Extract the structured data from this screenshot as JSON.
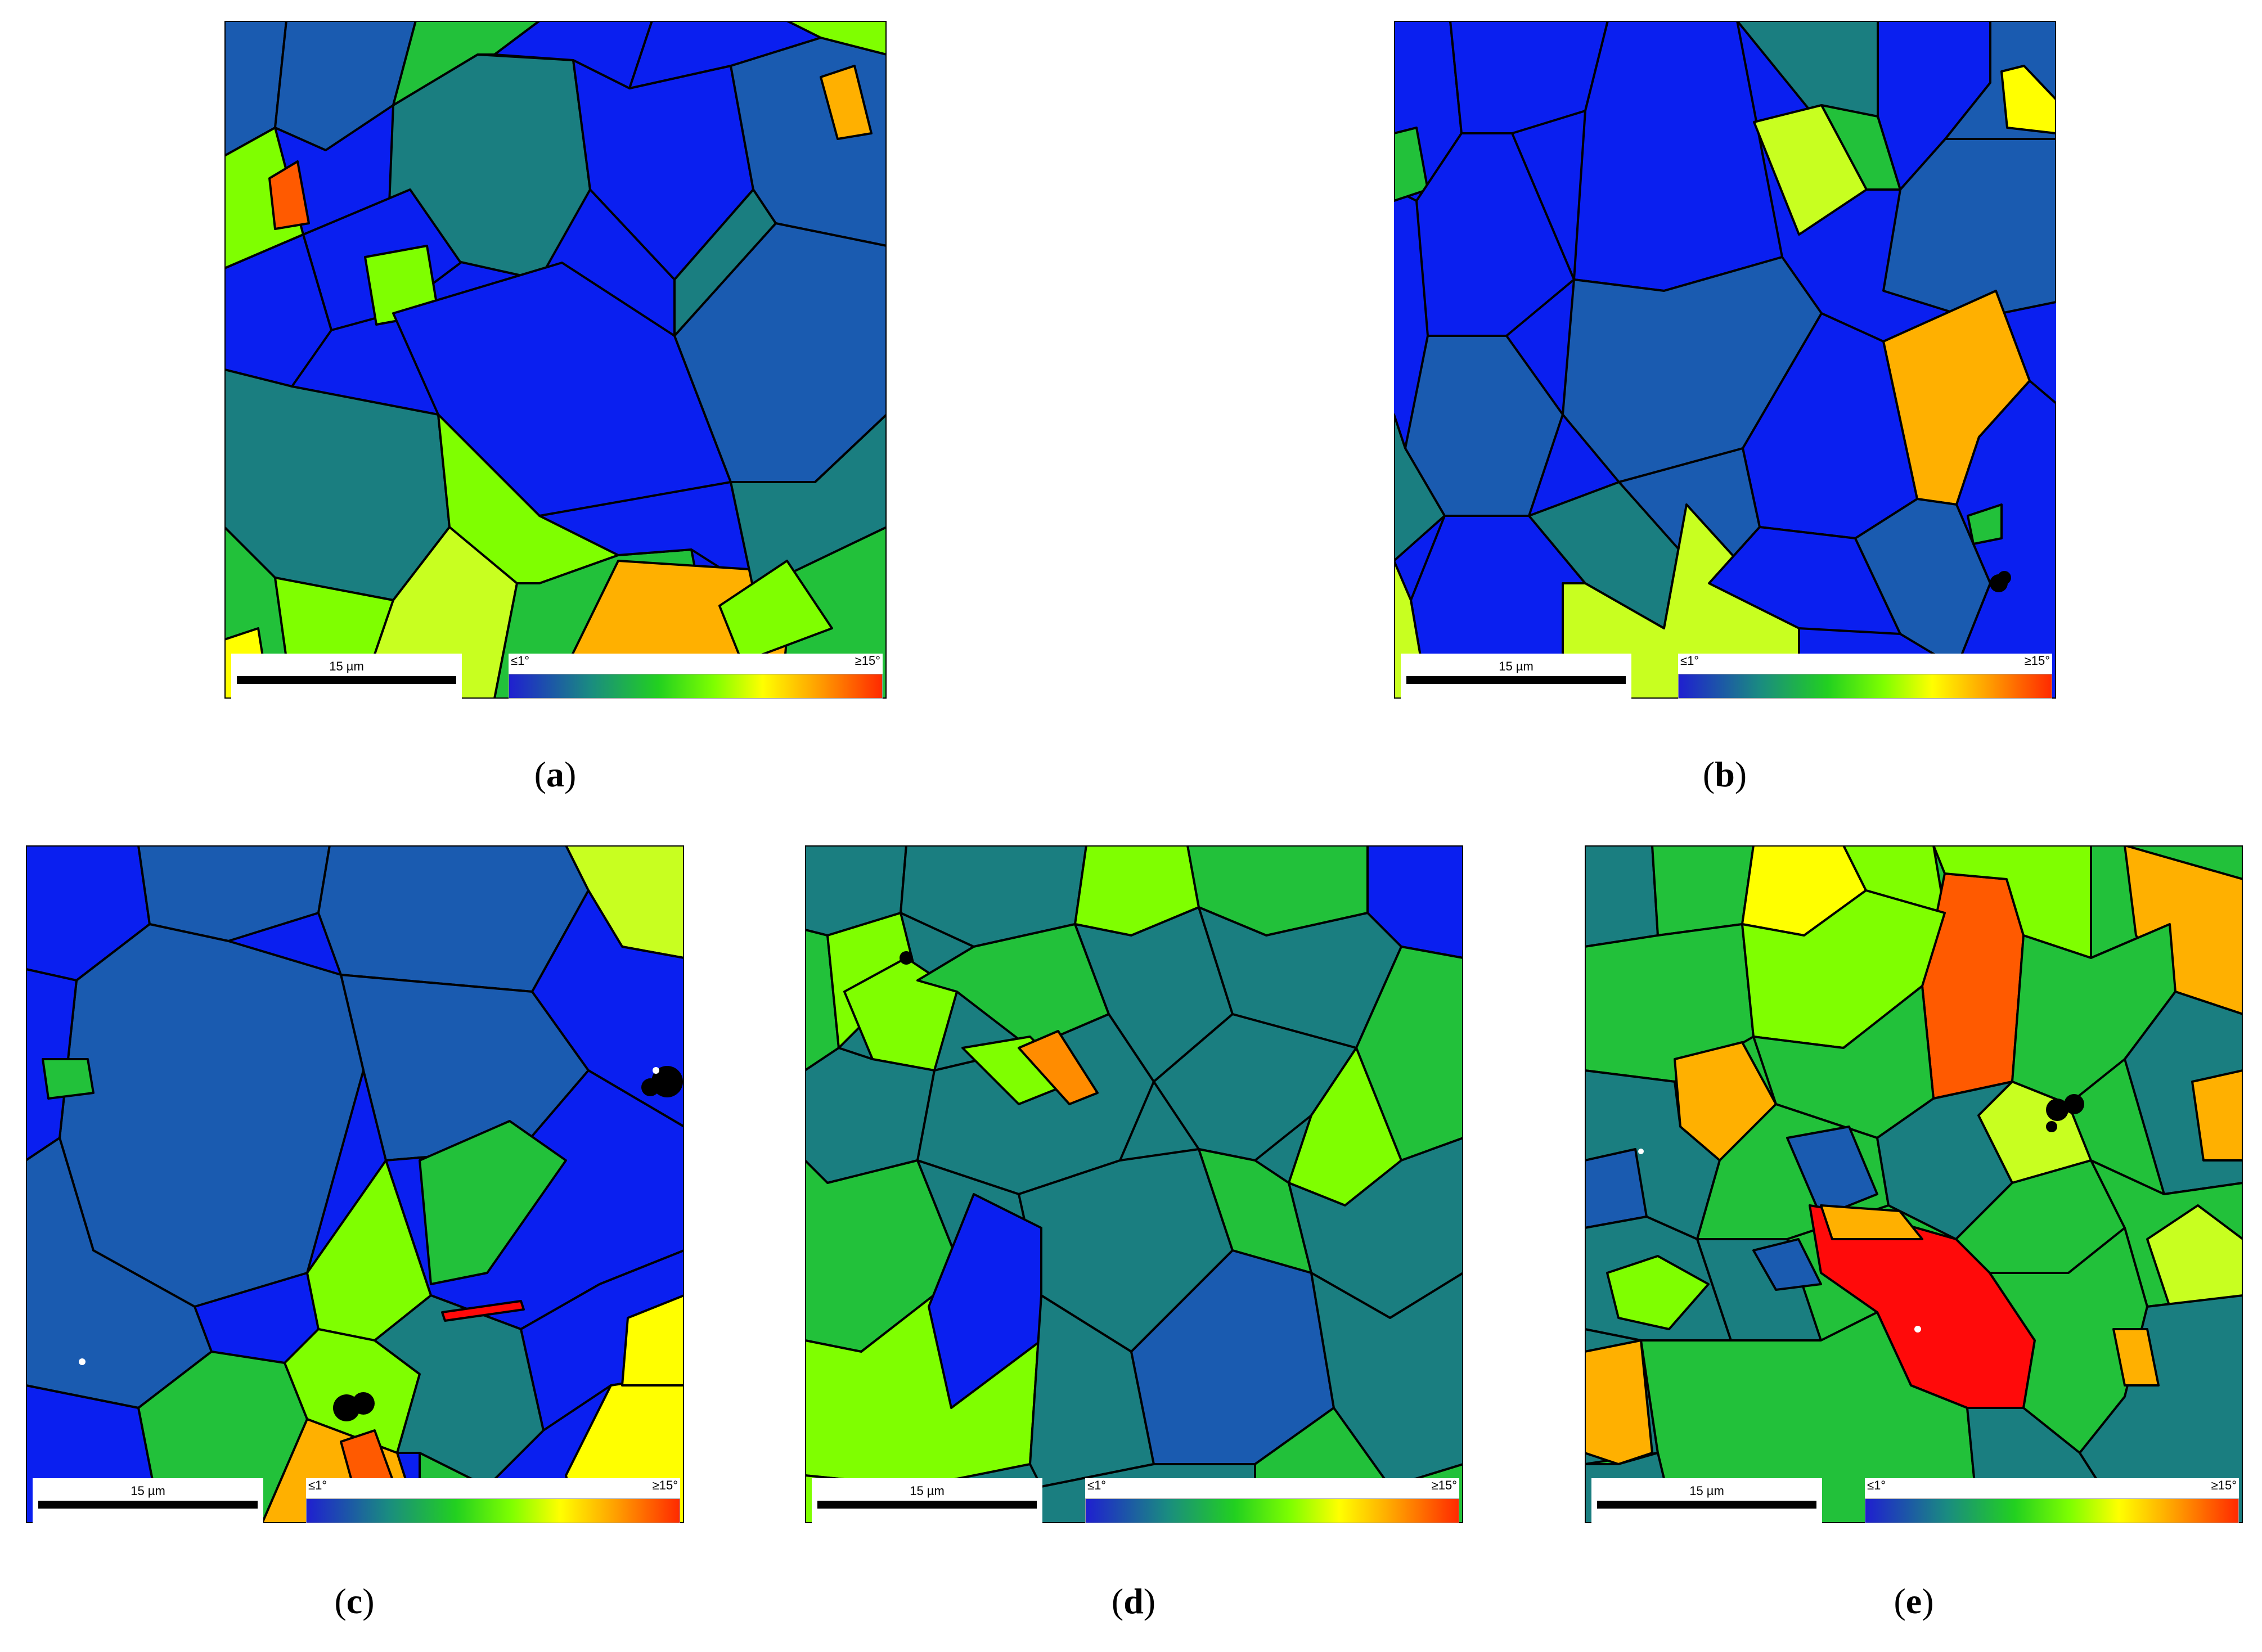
{
  "colorbar": {
    "min_label": "≤1°",
    "max_label": "≥15°",
    "colors": [
      "#1f1fd0",
      "#1a8c80",
      "#22d020",
      "#7fff00",
      "#ffff00",
      "#ffa500",
      "#ff2a00"
    ]
  },
  "panels": [
    {
      "id": "a",
      "caption_open": "(",
      "caption_letter": "a",
      "caption_close": ")",
      "scale_label": "15 µm"
    },
    {
      "id": "b",
      "caption_open": "(",
      "caption_letter": "b",
      "caption_close": ")",
      "scale_label": "15 µm"
    },
    {
      "id": "c",
      "caption_open": "(",
      "caption_letter": "c",
      "caption_close": ")",
      "scale_label": "15 µm"
    },
    {
      "id": "d",
      "caption_open": "(",
      "caption_letter": "d",
      "caption_close": ")",
      "scale_label": "15 µm"
    },
    {
      "id": "e",
      "caption_open": "(",
      "caption_letter": "e",
      "caption_close": ")",
      "scale_label": "15 µm"
    }
  ],
  "palette": {
    "blue": "#0a1ff0",
    "steel_blue": "#1a5bb0",
    "teal": "#1a7e80",
    "green": "#22c13a",
    "lime": "#7fff00",
    "yellow_green": "#c8ff20",
    "yellow": "#ffff00",
    "orange": "#ffb000",
    "red_orange": "#ff5a00",
    "red": "#ff0a0a",
    "boundary": "#000000"
  }
}
